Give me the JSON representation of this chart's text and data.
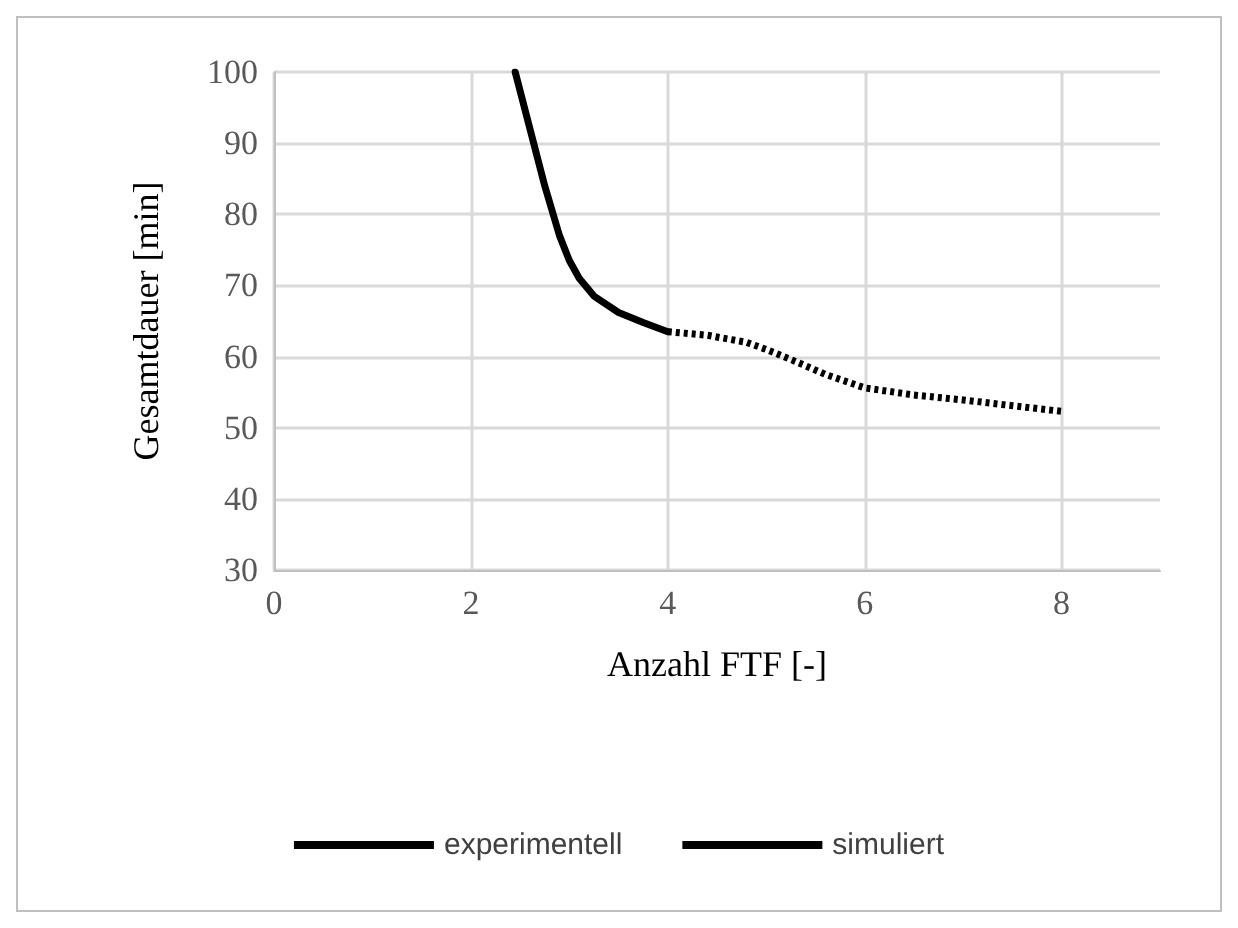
{
  "chart_data": {
    "type": "line",
    "xlabel": "Anzahl FTF [-]",
    "ylabel": "Gesamtdauer [min]",
    "xlim": [
      0,
      9
    ],
    "xticks": [
      0,
      2,
      4,
      6,
      8
    ],
    "ylim": [
      30,
      100
    ],
    "yticks": [
      30,
      40,
      50,
      60,
      70,
      80,
      90,
      100
    ],
    "grid": true,
    "legend": "bottom",
    "marker": "none",
    "series": [
      {
        "name": "experimentell",
        "color": "#000000",
        "line_style": "solid",
        "x": [
          2.45,
          2.6,
          2.75,
          2.9,
          3.0,
          3.1,
          3.25,
          3.5,
          3.75,
          4.0
        ],
        "values": [
          100,
          92,
          84,
          77,
          73.5,
          71,
          68.5,
          66.2,
          64.8,
          63.5
        ]
      },
      {
        "name": "simuliert",
        "color": "#000000",
        "line_style": "dotted",
        "x": [
          4.0,
          4.4,
          4.8,
          5.0,
          5.3,
          5.6,
          6.0,
          6.5,
          7.0,
          7.5,
          8.0
        ],
        "values": [
          63.5,
          63,
          62,
          61,
          59.3,
          57.5,
          55.6,
          54.6,
          53.9,
          53.1,
          52.3
        ]
      }
    ]
  }
}
